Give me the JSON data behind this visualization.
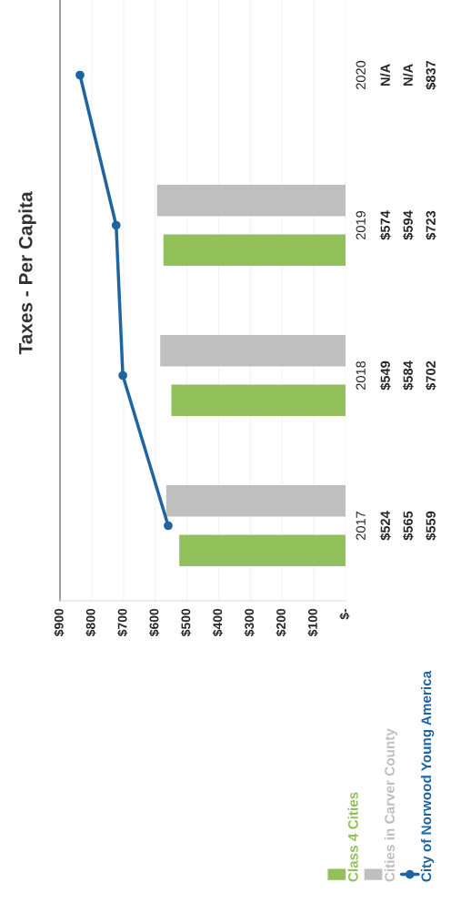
{
  "chart_data": {
    "type": "bar",
    "title": "Taxes - Per Capita",
    "orientation": "horizontal",
    "categories": [
      "2020",
      "2019",
      "2018",
      "2017"
    ],
    "series": [
      {
        "name": "Class 4 Cities",
        "color": "#92c05a",
        "values": [
          null,
          574,
          549,
          524
        ],
        "value_labels": [
          "N/A",
          "$574",
          "$549",
          "$524"
        ]
      },
      {
        "name": "Cities in Carver County",
        "color": "#bfbfbf",
        "values": [
          null,
          594,
          584,
          565
        ],
        "value_labels": [
          "N/A",
          "$594",
          "$584",
          "$565"
        ]
      },
      {
        "name": "City of Norwood Young America",
        "type": "line",
        "color": "#1f64a0",
        "marker": "circle",
        "values": [
          837,
          723,
          702,
          559
        ],
        "value_labels": [
          "$837",
          "$723",
          "$702",
          "$559"
        ]
      }
    ],
    "xlim": [
      900,
      0
    ],
    "xticks": [
      {
        "value": 900,
        "label": "$900"
      },
      {
        "value": 800,
        "label": "$800"
      },
      {
        "value": 700,
        "label": "$700"
      },
      {
        "value": 600,
        "label": "$600"
      },
      {
        "value": 500,
        "label": "$500"
      },
      {
        "value": 400,
        "label": "$400"
      },
      {
        "value": 300,
        "label": "$300"
      },
      {
        "value": 200,
        "label": "$200"
      },
      {
        "value": 100,
        "label": "$100"
      },
      {
        "value": 0,
        "label": "$-"
      }
    ],
    "grid": "x",
    "legend": "bottom"
  }
}
